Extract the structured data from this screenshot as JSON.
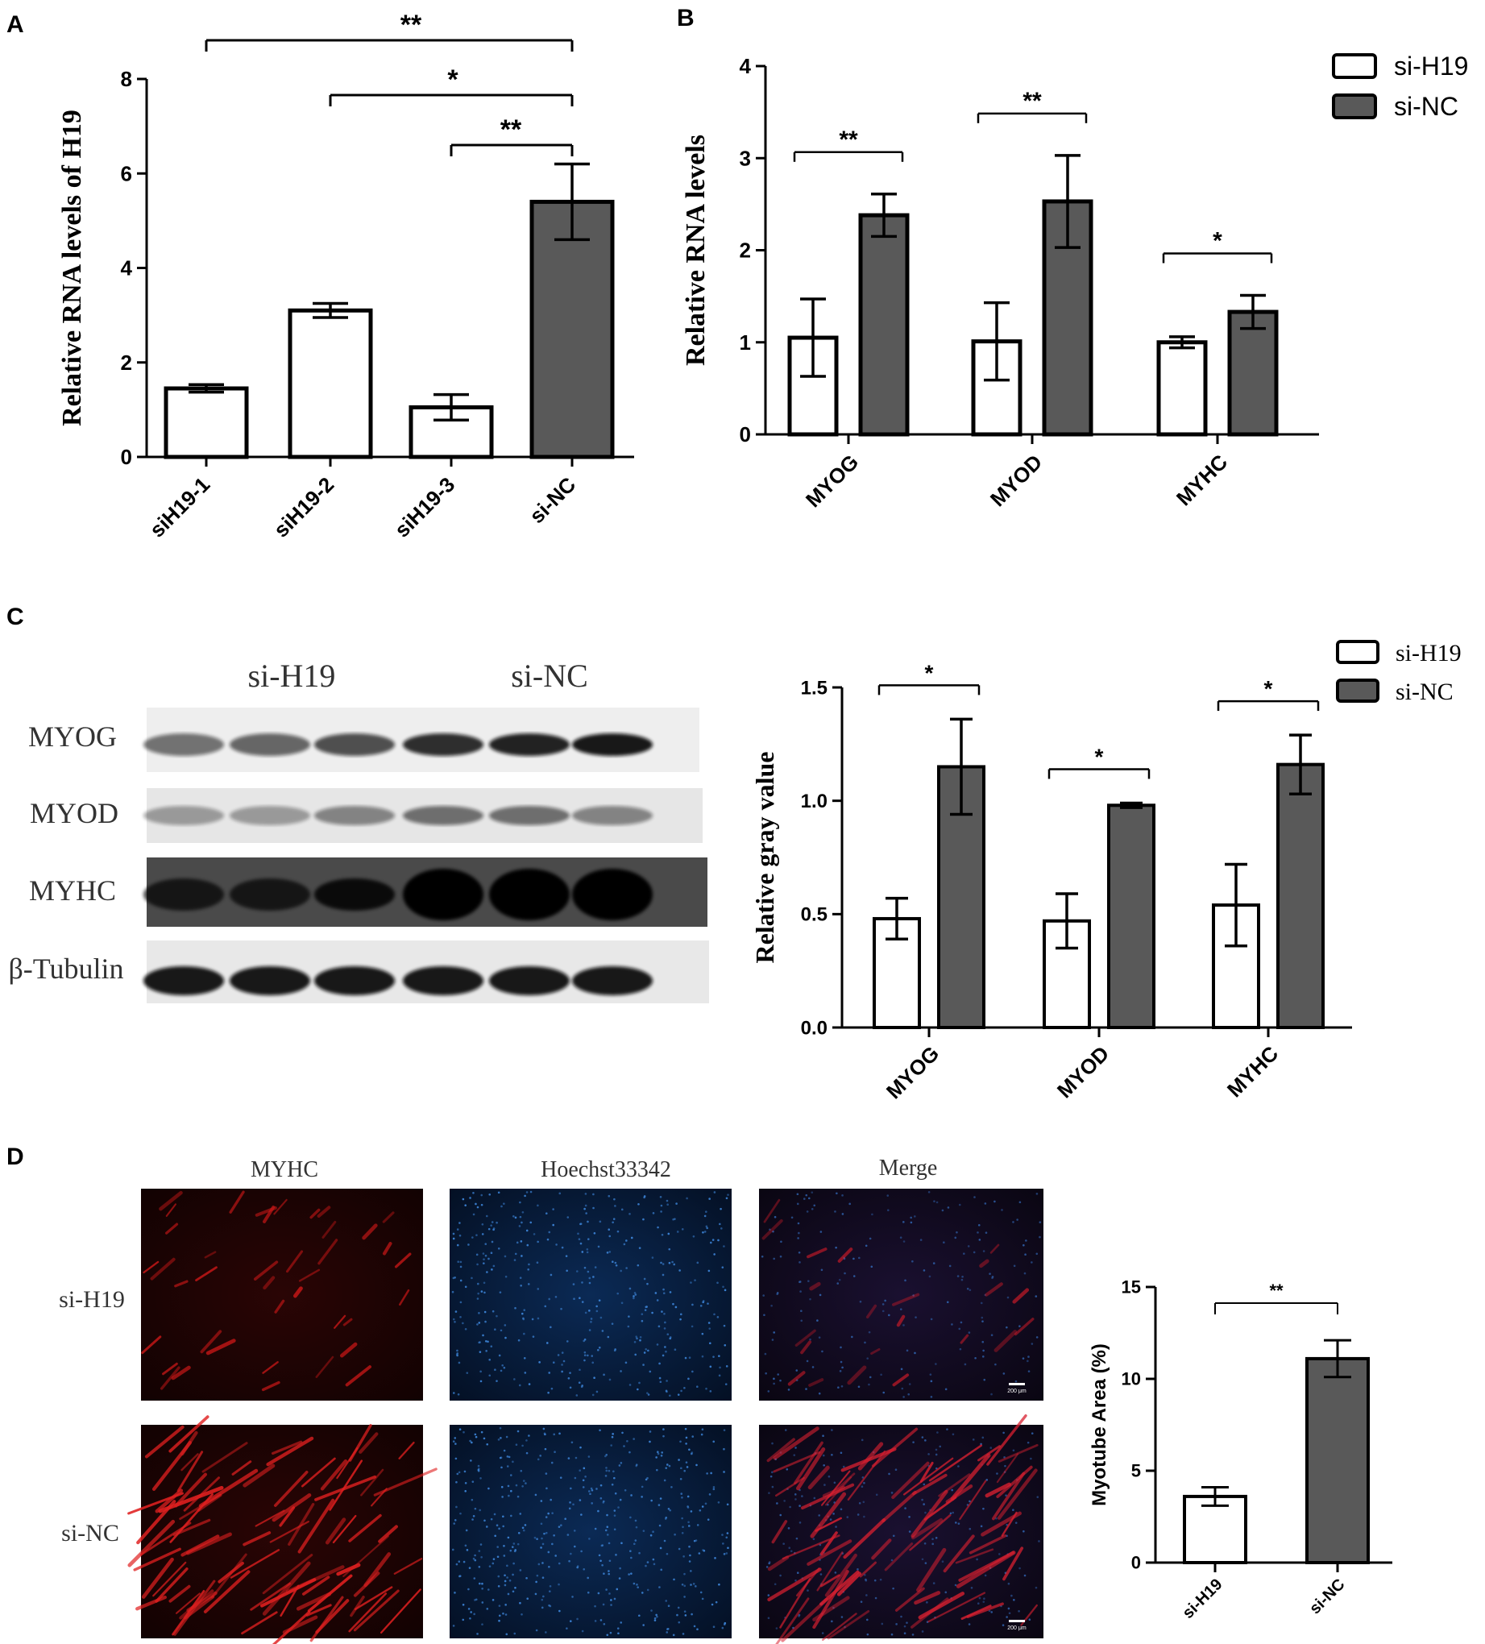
{
  "panel_labels": {
    "a": "A",
    "b": "B",
    "c": "C",
    "d": "D"
  },
  "colors": {
    "white_bar": "#ffffff",
    "gray_bar": "#595959",
    "stroke": "#000000"
  },
  "legend": {
    "si_h19": "si-H19",
    "si_nc": "si-NC"
  },
  "blot": {
    "group_labels": [
      "si-H19",
      "si-NC"
    ],
    "rows": [
      "MYOG",
      "MYOD",
      "MYHC",
      "β-Tubulin"
    ]
  },
  "micro": {
    "col_labels": [
      "MYHC",
      "Hoechst33342",
      "Merge"
    ],
    "row_labels": [
      "si-H19",
      "si-NC"
    ],
    "scale_bar": "200 μm"
  },
  "chart_data": [
    {
      "id": "A",
      "type": "bar",
      "ylabel": "Relative RNA levels of H19",
      "ylim": [
        0,
        8
      ],
      "yticks": [
        0,
        2,
        4,
        6,
        8
      ],
      "categories": [
        "siH19-1",
        "siH19-2",
        "siH19-3",
        "si-NC"
      ],
      "values": [
        1.45,
        3.1,
        1.05,
        5.4
      ],
      "errors": [
        0.08,
        0.15,
        0.27,
        0.8
      ],
      "bar_colors": [
        "white",
        "white",
        "white",
        "gray"
      ],
      "significance": [
        {
          "from": 0,
          "to": 3,
          "label": "**"
        },
        {
          "from": 1,
          "to": 3,
          "label": "*"
        },
        {
          "from": 2,
          "to": 3,
          "label": "**"
        }
      ]
    },
    {
      "id": "B",
      "type": "bar",
      "ylabel": "Relative RNA levels",
      "ylim": [
        0,
        4
      ],
      "yticks": [
        0,
        1,
        2,
        3,
        4
      ],
      "categories": [
        "MYOG",
        "MYOD",
        "MYHC"
      ],
      "series": [
        {
          "name": "si-H19",
          "values": [
            1.05,
            1.01,
            1.0
          ],
          "errors": [
            0.42,
            0.42,
            0.06
          ]
        },
        {
          "name": "si-NC",
          "values": [
            2.38,
            2.53,
            1.33
          ],
          "errors": [
            0.23,
            0.5,
            0.18
          ]
        }
      ],
      "significance": [
        "**",
        "**",
        "*"
      ]
    },
    {
      "id": "C",
      "type": "bar",
      "ylabel": "Relative gray value",
      "ylim": [
        0,
        1.5
      ],
      "yticks": [
        "0.0",
        "0.5",
        "1.0",
        "1.5"
      ],
      "categories": [
        "MYOG",
        "MYOD",
        "MYHC"
      ],
      "series": [
        {
          "name": "si-H19",
          "values": [
            0.48,
            0.47,
            0.54
          ],
          "errors": [
            0.09,
            0.12,
            0.18
          ]
        },
        {
          "name": "si-NC",
          "values": [
            1.15,
            0.98,
            1.16
          ],
          "errors": [
            0.21,
            0.01,
            0.13
          ]
        }
      ],
      "significance": [
        "*",
        "*",
        "*"
      ]
    },
    {
      "id": "D",
      "type": "bar",
      "ylabel": "Myotube Area (%)",
      "ylim": [
        0,
        15
      ],
      "yticks": [
        0,
        5,
        10,
        15
      ],
      "categories": [
        "si-H19",
        "si-NC"
      ],
      "values": [
        3.6,
        11.1
      ],
      "errors": [
        0.5,
        1.0
      ],
      "bar_colors": [
        "white",
        "gray"
      ],
      "significance": [
        {
          "from": 0,
          "to": 1,
          "label": "**"
        }
      ]
    }
  ]
}
